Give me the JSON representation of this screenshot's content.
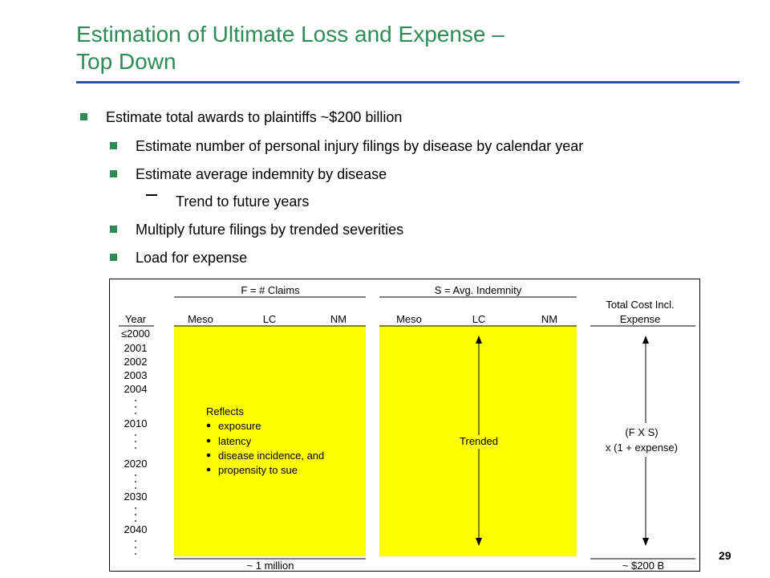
{
  "slide": {
    "title_line1": "Estimation of Ultimate Loss and Expense –",
    "title_line2": "Top Down",
    "page_number": "29"
  },
  "bullets": [
    "Estimate total awards to plaintiffs ~$200 billion",
    "Estimate number of personal injury filings by disease by calendar year",
    "Estimate average indemnity by disease",
    "Trend to future years",
    "Multiply future filings by trended severities",
    "Load for expense"
  ],
  "table": {
    "headers": {
      "claims_group": "F = # Claims",
      "severity_group": "S = Avg. Indemnity",
      "total_line1": "Total Cost Incl.",
      "total_line2": "Expense",
      "year": "Year",
      "claims_cols": [
        "Meso",
        "LC",
        "NM"
      ],
      "severity_cols": [
        "Meso",
        "LC",
        "NM"
      ]
    },
    "years": [
      "≤2000",
      "2001",
      "2002",
      "2003",
      "2004",
      "2010",
      "2020",
      "2030",
      "2040"
    ],
    "reflects_title": "Reflects",
    "reflects_items": [
      "exposure",
      "latency",
      "disease incidence, and",
      "propensity to sue"
    ],
    "trended_label": "Trended",
    "total_formula_line1": "(F X S)",
    "total_formula_line2": "x (1 +  expense)",
    "claims_footer": "~ 1 million",
    "total_footer": "~ $200 B",
    "highlight_color": "#ffff00"
  }
}
